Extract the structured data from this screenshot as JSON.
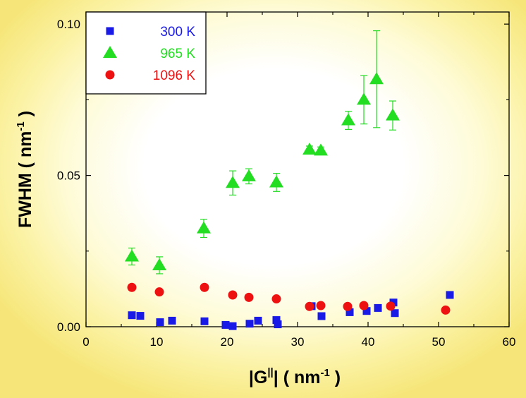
{
  "chart_data": {
    "type": "scatter",
    "xlabel": {
      "main": "|G",
      "sup": "||",
      "rest": "|  ( nm",
      "exp": "-1",
      "end": " )"
    },
    "ylabel": {
      "main": "FWHM  ( nm",
      "exp": "-1",
      "end": " )"
    },
    "xlim": [
      0,
      60
    ],
    "ylim": [
      0,
      0.104
    ],
    "xticks": [
      0,
      10,
      20,
      30,
      40,
      50,
      60
    ],
    "xtick_labels": [
      "0",
      "10",
      "20",
      "30",
      "40",
      "50",
      "60"
    ],
    "yticks": [
      0.0,
      0.05,
      0.1
    ],
    "ytick_labels": [
      "0.00",
      "0.05",
      "0.10"
    ],
    "legend_position": "top-left",
    "series": [
      {
        "name": "300 K",
        "marker": "square",
        "color": "#1a1ae6",
        "points": [
          {
            "x": 6.5,
            "y": 0.0038
          },
          {
            "x": 7.7,
            "y": 0.0036
          },
          {
            "x": 10.5,
            "y": 0.0015
          },
          {
            "x": 12.2,
            "y": 0.002
          },
          {
            "x": 16.8,
            "y": 0.0018
          },
          {
            "x": 19.8,
            "y": 0.0006
          },
          {
            "x": 20.8,
            "y": 0.0002
          },
          {
            "x": 23.2,
            "y": 0.001
          },
          {
            "x": 24.4,
            "y": 0.002
          },
          {
            "x": 27.0,
            "y": 0.0022
          },
          {
            "x": 27.2,
            "y": 0.0008
          },
          {
            "x": 32.0,
            "y": 0.0068
          },
          {
            "x": 33.4,
            "y": 0.0035
          },
          {
            "x": 37.4,
            "y": 0.0048
          },
          {
            "x": 39.8,
            "y": 0.0052
          },
          {
            "x": 41.4,
            "y": 0.0062
          },
          {
            "x": 43.6,
            "y": 0.008
          },
          {
            "x": 43.8,
            "y": 0.0045
          },
          {
            "x": 51.6,
            "y": 0.0105
          }
        ]
      },
      {
        "name": "965 K",
        "marker": "triangle",
        "color": "#22dd22",
        "points": [
          {
            "x": 6.5,
            "y": 0.0232,
            "err": 0.0028
          },
          {
            "x": 10.4,
            "y": 0.0203,
            "err": 0.0028
          },
          {
            "x": 16.7,
            "y": 0.0325,
            "err": 0.003
          },
          {
            "x": 20.8,
            "y": 0.0475,
            "err": 0.004
          },
          {
            "x": 23.1,
            "y": 0.0497,
            "err": 0.0025
          },
          {
            "x": 27.0,
            "y": 0.0477,
            "err": 0.003
          },
          {
            "x": 31.7,
            "y": 0.0585,
            "err": 0.0012
          },
          {
            "x": 33.3,
            "y": 0.0582,
            "err": 0.0012
          },
          {
            "x": 37.2,
            "y": 0.0682,
            "err": 0.003
          },
          {
            "x": 39.4,
            "y": 0.075,
            "err": 0.008
          },
          {
            "x": 41.2,
            "y": 0.0818,
            "err": 0.016
          },
          {
            "x": 43.5,
            "y": 0.0698,
            "err": 0.0048
          }
        ]
      },
      {
        "name": "1096 K",
        "marker": "circle",
        "color": "#ee1111",
        "points": [
          {
            "x": 6.5,
            "y": 0.013
          },
          {
            "x": 10.4,
            "y": 0.0115
          },
          {
            "x": 16.8,
            "y": 0.013
          },
          {
            "x": 20.8,
            "y": 0.0105
          },
          {
            "x": 23.1,
            "y": 0.0097
          },
          {
            "x": 27.0,
            "y": 0.0092
          },
          {
            "x": 31.7,
            "y": 0.0067
          },
          {
            "x": 33.3,
            "y": 0.007
          },
          {
            "x": 37.1,
            "y": 0.0067
          },
          {
            "x": 39.4,
            "y": 0.007
          },
          {
            "x": 43.2,
            "y": 0.0068
          },
          {
            "x": 51.0,
            "y": 0.0055
          }
        ]
      }
    ]
  }
}
